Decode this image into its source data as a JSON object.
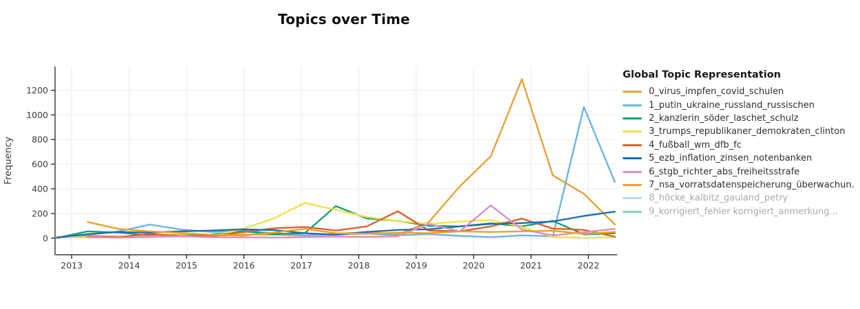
{
  "title": "Topics over Time",
  "legend_title": "Global Topic Representation",
  "chart_data": {
    "type": "line",
    "title": "Topics over Time",
    "xlabel": "",
    "ylabel": "Frequency",
    "xlim": [
      2012.71,
      2022.5
    ],
    "ylim": [
      -135,
      1392
    ],
    "x_ticks": [
      2013,
      2014,
      2015,
      2016,
      2017,
      2018,
      2019,
      2020,
      2021,
      2022
    ],
    "y_ticks": [
      0,
      200,
      400,
      600,
      800,
      1000,
      1200
    ],
    "grid": true,
    "legend_position": "right",
    "x": [
      2012.74,
      2013.28,
      2013.82,
      2014.36,
      2014.9,
      2015.44,
      2015.98,
      2016.52,
      2017.06,
      2017.6,
      2018.14,
      2018.68,
      2019.22,
      2019.76,
      2020.3,
      2020.84,
      2021.38,
      2021.92,
      2022.46
    ],
    "series": [
      {
        "name": "0_virus_impfen_covid_schulen",
        "color": "#E6A13A",
        "visible": true,
        "values": [
          3,
          18,
          12,
          22,
          28,
          18,
          30,
          28,
          22,
          35,
          50,
          30,
          130,
          420,
          665,
          1290,
          510,
          360,
          110
        ]
      },
      {
        "name": "1_putin_ukraine_russland_russischen",
        "color": "#6FB3E2",
        "visible": true,
        "values": [
          5,
          28,
          55,
          110,
          70,
          50,
          62,
          40,
          22,
          28,
          38,
          22,
          32,
          18,
          8,
          22,
          15,
          1065,
          455
        ]
      },
      {
        "name": "2_kanzlerin_söder_laschet_schulz",
        "color": "#18A077",
        "visible": true,
        "values": [
          2,
          55,
          45,
          22,
          18,
          30,
          55,
          32,
          40,
          260,
          160,
          140,
          100,
          95,
          120,
          95,
          140,
          30,
          40
        ]
      },
      {
        "name": "3_trumps_republikaner_demokraten_clinton",
        "color": "#EFE24B",
        "visible": true,
        "values": [
          10,
          4,
          8,
          14,
          18,
          14,
          75,
          160,
          285,
          230,
          172,
          138,
          115,
          135,
          146,
          90,
          10,
          2,
          8
        ]
      },
      {
        "name": "4_fußball_wm_dfb_fc",
        "color": "#D8632E",
        "visible": true,
        "values": [
          null,
          14,
          8,
          35,
          14,
          18,
          48,
          80,
          90,
          62,
          95,
          218,
          62,
          55,
          95,
          158,
          78,
          67,
          12
        ]
      },
      {
        "name": "5_ezb_inflation_zinsen_notenbanken",
        "color": "#1C6FB2",
        "visible": true,
        "values": [
          5,
          33,
          50,
          45,
          55,
          62,
          72,
          65,
          40,
          28,
          50,
          67,
          72,
          95,
          115,
          122,
          135,
          180,
          215
        ]
      },
      {
        "name": "6_stgb_richter_abs_freiheitsstrafe",
        "color": "#DC8EC3",
        "visible": true,
        "values": [
          null,
          8,
          4,
          10,
          15,
          8,
          6,
          5,
          8,
          12,
          10,
          15,
          115,
          55,
          265,
          70,
          22,
          48,
          75
        ]
      },
      {
        "name": "7_nsa_vorratsdatenspeicherung_überwachun.",
        "color": "#EFA222",
        "visible": true,
        "values": [
          null,
          130,
          75,
          55,
          42,
          28,
          20,
          45,
          75,
          40,
          35,
          45,
          40,
          55,
          50,
          55,
          60,
          35,
          50
        ]
      },
      {
        "name": "8_höcke_kalbitz_gauland_petry",
        "color": "#B7DCF0",
        "visible": false,
        "values": []
      },
      {
        "name": "9_korrigiert_fehler korrigiert_anmerkung...",
        "color": "#8BD1C0",
        "visible": false,
        "values": []
      }
    ]
  }
}
